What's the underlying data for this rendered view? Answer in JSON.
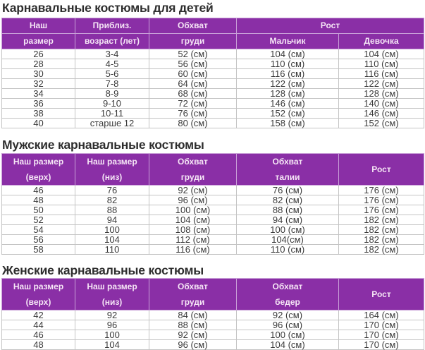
{
  "colors": {
    "header_bg": "#8a2fa6",
    "header_text": "#f6e6f6",
    "border": "#c4c4c4"
  },
  "kids": {
    "title": "Карнавальные костюмы для детей",
    "headers": {
      "size": [
        "Наш",
        "размер"
      ],
      "age": [
        "Приблиз.",
        "возраст (лет)"
      ],
      "chest": [
        "Обхват",
        "груди"
      ],
      "height": "Рост",
      "boy": "Мальчик",
      "girl": "Девочка"
    },
    "rows": [
      [
        "26",
        "3-4",
        "52 (см)",
        "104 (см)",
        "104 (см)"
      ],
      [
        "28",
        "4-5",
        "56 (см)",
        "110 (см)",
        "110 (см)"
      ],
      [
        "30",
        "5-6",
        "60 (см)",
        "116 (см)",
        "116 (см)"
      ],
      [
        "32",
        "7-8",
        "64 (см)",
        "122 (см)",
        "122 (см)"
      ],
      [
        "34",
        "8-9",
        "68 (см)",
        "128 (см)",
        "128 (см)"
      ],
      [
        "36",
        "9-10",
        "72 (см)",
        "146 (см)",
        "140 (см)"
      ],
      [
        "38",
        "10-11",
        "76 (см)",
        "152 (см)",
        "146 (см)"
      ],
      [
        "40",
        "старше 12",
        "80 (см)",
        "158 (см)",
        "152 (см)"
      ]
    ]
  },
  "men": {
    "title": "Мужские карнавальные костюмы",
    "headers": [
      [
        "Наш размер",
        "(верх)"
      ],
      [
        "Наш размер",
        "(низ)"
      ],
      [
        "Обхват",
        "груди"
      ],
      [
        "Обхват",
        "талии"
      ],
      [
        "Рост",
        ""
      ]
    ],
    "rows": [
      [
        "46",
        "76",
        "92 (см)",
        "76 (см)",
        "176 (см)"
      ],
      [
        "48",
        "82",
        "96 (см)",
        "82 (см)",
        "176 (см)"
      ],
      [
        "50",
        "88",
        "100 (см)",
        "88 (см)",
        "176 (см)"
      ],
      [
        "52",
        "94",
        "104 (см)",
        "94 (см)",
        "182 (см)"
      ],
      [
        "54",
        "100",
        "108 (см)",
        "100 (см)",
        "182 (см)"
      ],
      [
        "56",
        "104",
        "112 (см)",
        "104(см)",
        "182 (см)"
      ],
      [
        "58",
        "110",
        "116 (см)",
        "110 (см)",
        "182 (см)"
      ]
    ]
  },
  "women": {
    "title": "Женские карнавальные костюмы",
    "headers": [
      [
        "Наш размер",
        "(верх)"
      ],
      [
        "Наш размер",
        "(низ)"
      ],
      [
        "Обхват",
        "груди"
      ],
      [
        "Обхват",
        "бедер"
      ],
      [
        "Рост",
        ""
      ]
    ],
    "rows": [
      [
        "42",
        "92",
        "84 (см)",
        "92 (см)",
        "164 (см)"
      ],
      [
        "44",
        "96",
        "88 (см)",
        "96 (см)",
        "170 (см)"
      ],
      [
        "46",
        "100",
        "92 (см)",
        "100 (см)",
        "170 (см)"
      ],
      [
        "48",
        "104",
        "96 (см)",
        "104 (см)",
        "170 (см)"
      ]
    ]
  }
}
